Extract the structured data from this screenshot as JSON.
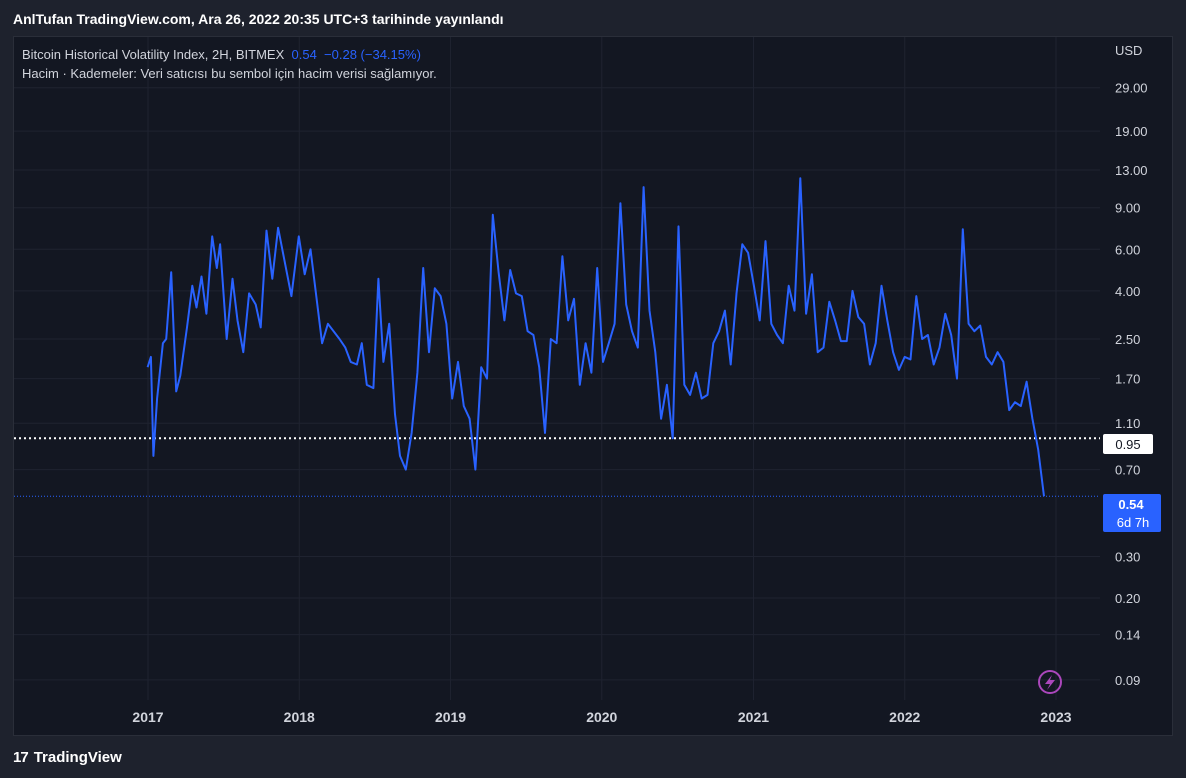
{
  "publish_note": "AnlTufan TradingView.com, Ara 26, 2022 20:35 UTC+3 tarihinde yayınlandı",
  "legend": {
    "symbol": "Bitcoin Historical Volatility Index, 2H, BITMEX",
    "value": "0.54",
    "change": "−0.28 (−34.15%)",
    "volume_note": "Hacim · Kademeler: Veri satıcısı bu sembol için hacim verisi sağlamıyor."
  },
  "price_axis": {
    "currency": "USD",
    "ticks": [
      "29.00",
      "19.00",
      "13.00",
      "9.00",
      "6.00",
      "4.00",
      "2.50",
      "1.70",
      "1.10",
      "0.70",
      "0.30",
      "0.20",
      "0.14",
      "0.09"
    ]
  },
  "markers": {
    "dotted_line_value": "0.95",
    "last_value": "0.54",
    "countdown": "6d 7h"
  },
  "footer": {
    "brand": "TradingView",
    "logo_glyph": "17"
  },
  "colors": {
    "line": "#2962ff",
    "background": "#131722",
    "last_label": "#2962ff"
  },
  "chart_data": {
    "type": "line",
    "scale": "log",
    "title": "Bitcoin Historical Volatility Index, 2H, BITMEX",
    "ylabel": "USD",
    "ylim": [
      0.08,
      38
    ],
    "x_ticks": [
      "2017",
      "2018",
      "2019",
      "2020",
      "2021",
      "2022",
      "2023"
    ],
    "grid": true,
    "series": [
      {
        "values": [
          {
            "x": "2016-12-31",
            "y": 1.9
          },
          {
            "x": "2017-01-08",
            "y": 2.1
          },
          {
            "x": "2017-01-14",
            "y": 0.8
          },
          {
            "x": "2017-01-23",
            "y": 1.4
          },
          {
            "x": "2017-02-06",
            "y": 2.4
          },
          {
            "x": "2017-02-14",
            "y": 2.5
          },
          {
            "x": "2017-02-26",
            "y": 4.8
          },
          {
            "x": "2017-03-10",
            "y": 1.5
          },
          {
            "x": "2017-03-20",
            "y": 1.75
          },
          {
            "x": "2017-04-05",
            "y": 2.8
          },
          {
            "x": "2017-04-18",
            "y": 4.2
          },
          {
            "x": "2017-04-28",
            "y": 3.4
          },
          {
            "x": "2017-05-10",
            "y": 4.6
          },
          {
            "x": "2017-05-22",
            "y": 3.2
          },
          {
            "x": "2017-06-05",
            "y": 6.8
          },
          {
            "x": "2017-06-16",
            "y": 5.0
          },
          {
            "x": "2017-06-24",
            "y": 6.3
          },
          {
            "x": "2017-07-10",
            "y": 2.5
          },
          {
            "x": "2017-07-24",
            "y": 4.5
          },
          {
            "x": "2017-08-05",
            "y": 3.0
          },
          {
            "x": "2017-08-19",
            "y": 2.2
          },
          {
            "x": "2017-09-02",
            "y": 3.9
          },
          {
            "x": "2017-09-18",
            "y": 3.5
          },
          {
            "x": "2017-09-30",
            "y": 2.8
          },
          {
            "x": "2017-10-14",
            "y": 7.2
          },
          {
            "x": "2017-10-28",
            "y": 4.5
          },
          {
            "x": "2017-11-11",
            "y": 7.4
          },
          {
            "x": "2017-12-13",
            "y": 3.8
          },
          {
            "x": "2017-12-31",
            "y": 6.8
          },
          {
            "x": "2018-01-14",
            "y": 4.7
          },
          {
            "x": "2018-01-28",
            "y": 6.0
          },
          {
            "x": "2018-02-25",
            "y": 2.4
          },
          {
            "x": "2018-03-11",
            "y": 2.9
          },
          {
            "x": "2018-04-08",
            "y": 2.5
          },
          {
            "x": "2018-04-22",
            "y": 2.3
          },
          {
            "x": "2018-05-05",
            "y": 2.0
          },
          {
            "x": "2018-05-20",
            "y": 1.95
          },
          {
            "x": "2018-06-01",
            "y": 2.4
          },
          {
            "x": "2018-06-13",
            "y": 1.6
          },
          {
            "x": "2018-06-29",
            "y": 1.55
          },
          {
            "x": "2018-07-11",
            "y": 4.5
          },
          {
            "x": "2018-07-23",
            "y": 2.0
          },
          {
            "x": "2018-08-06",
            "y": 2.9
          },
          {
            "x": "2018-08-20",
            "y": 1.2
          },
          {
            "x": "2018-09-01",
            "y": 0.8
          },
          {
            "x": "2018-09-15",
            "y": 0.7
          },
          {
            "x": "2018-09-29",
            "y": 1.0
          },
          {
            "x": "2018-10-13",
            "y": 1.8
          },
          {
            "x": "2018-10-27",
            "y": 5.0
          },
          {
            "x": "2018-11-10",
            "y": 2.2
          },
          {
            "x": "2018-11-24",
            "y": 4.1
          },
          {
            "x": "2018-12-08",
            "y": 3.8
          },
          {
            "x": "2018-12-22",
            "y": 2.9
          },
          {
            "x": "2019-01-05",
            "y": 1.4
          },
          {
            "x": "2019-01-19",
            "y": 2.0
          },
          {
            "x": "2019-02-02",
            "y": 1.3
          },
          {
            "x": "2019-02-16",
            "y": 1.15
          },
          {
            "x": "2019-03-02",
            "y": 0.7
          },
          {
            "x": "2019-03-16",
            "y": 1.9
          },
          {
            "x": "2019-03-30",
            "y": 1.7
          },
          {
            "x": "2019-04-13",
            "y": 8.4
          },
          {
            "x": "2019-04-27",
            "y": 4.8
          },
          {
            "x": "2019-05-11",
            "y": 3.0
          },
          {
            "x": "2019-05-25",
            "y": 4.9
          },
          {
            "x": "2019-06-08",
            "y": 3.9
          },
          {
            "x": "2019-06-22",
            "y": 3.8
          },
          {
            "x": "2019-07-06",
            "y": 2.7
          },
          {
            "x": "2019-07-20",
            "y": 2.6
          },
          {
            "x": "2019-08-03",
            "y": 1.9
          },
          {
            "x": "2019-08-17",
            "y": 1.0
          },
          {
            "x": "2019-08-31",
            "y": 2.5
          },
          {
            "x": "2019-09-14",
            "y": 2.4
          },
          {
            "x": "2019-09-28",
            "y": 5.6
          },
          {
            "x": "2019-10-12",
            "y": 3.0
          },
          {
            "x": "2019-10-26",
            "y": 3.7
          },
          {
            "x": "2019-11-09",
            "y": 1.6
          },
          {
            "x": "2019-11-23",
            "y": 2.4
          },
          {
            "x": "2019-12-07",
            "y": 1.8
          },
          {
            "x": "2019-12-21",
            "y": 5.0
          },
          {
            "x": "2020-01-04",
            "y": 2.0
          },
          {
            "x": "2020-01-18",
            "y": 2.4
          },
          {
            "x": "2020-02-01",
            "y": 2.9
          },
          {
            "x": "2020-02-15",
            "y": 9.4
          },
          {
            "x": "2020-02-29",
            "y": 3.5
          },
          {
            "x": "2020-03-14",
            "y": 2.7
          },
          {
            "x": "2020-03-28",
            "y": 2.3
          },
          {
            "x": "2020-04-11",
            "y": 11.0
          },
          {
            "x": "2020-04-25",
            "y": 3.3
          },
          {
            "x": "2020-05-09",
            "y": 2.2
          },
          {
            "x": "2020-05-23",
            "y": 1.15
          },
          {
            "x": "2020-06-06",
            "y": 1.6
          },
          {
            "x": "2020-06-20",
            "y": 0.95
          },
          {
            "x": "2020-07-04",
            "y": 7.5
          },
          {
            "x": "2020-07-18",
            "y": 1.6
          },
          {
            "x": "2020-08-01",
            "y": 1.45
          },
          {
            "x": "2020-08-15",
            "y": 1.8
          },
          {
            "x": "2020-08-29",
            "y": 1.4
          },
          {
            "x": "2020-09-12",
            "y": 1.45
          },
          {
            "x": "2020-09-26",
            "y": 2.4
          },
          {
            "x": "2020-10-10",
            "y": 2.7
          },
          {
            "x": "2020-10-24",
            "y": 3.3
          },
          {
            "x": "2020-11-07",
            "y": 1.95
          },
          {
            "x": "2020-11-21",
            "y": 3.9
          },
          {
            "x": "2020-12-05",
            "y": 6.3
          },
          {
            "x": "2020-12-19",
            "y": 5.8
          },
          {
            "x": "2021-01-02",
            "y": 4.2
          },
          {
            "x": "2021-01-16",
            "y": 3.0
          },
          {
            "x": "2021-01-30",
            "y": 6.5
          },
          {
            "x": "2021-02-13",
            "y": 2.9
          },
          {
            "x": "2021-02-27",
            "y": 2.6
          },
          {
            "x": "2021-03-13",
            "y": 2.4
          },
          {
            "x": "2021-03-27",
            "y": 4.2
          },
          {
            "x": "2021-04-10",
            "y": 3.3
          },
          {
            "x": "2021-04-24",
            "y": 12.0
          },
          {
            "x": "2021-05-08",
            "y": 3.2
          },
          {
            "x": "2021-05-22",
            "y": 4.7
          },
          {
            "x": "2021-06-05",
            "y": 2.2
          },
          {
            "x": "2021-06-19",
            "y": 2.3
          },
          {
            "x": "2021-07-03",
            "y": 3.6
          },
          {
            "x": "2021-07-17",
            "y": 3.0
          },
          {
            "x": "2021-07-31",
            "y": 2.45
          },
          {
            "x": "2021-08-14",
            "y": 2.45
          },
          {
            "x": "2021-08-28",
            "y": 4.0
          },
          {
            "x": "2021-09-11",
            "y": 3.1
          },
          {
            "x": "2021-09-25",
            "y": 2.9
          },
          {
            "x": "2021-10-09",
            "y": 1.95
          },
          {
            "x": "2021-10-23",
            "y": 2.4
          },
          {
            "x": "2021-11-06",
            "y": 4.2
          },
          {
            "x": "2021-11-20",
            "y": 3.0
          },
          {
            "x": "2021-12-04",
            "y": 2.2
          },
          {
            "x": "2021-12-18",
            "y": 1.85
          },
          {
            "x": "2022-01-01",
            "y": 2.1
          },
          {
            "x": "2022-01-15",
            "y": 2.05
          },
          {
            "x": "2022-01-29",
            "y": 3.8
          },
          {
            "x": "2022-02-12",
            "y": 2.5
          },
          {
            "x": "2022-02-26",
            "y": 2.6
          },
          {
            "x": "2022-03-12",
            "y": 1.95
          },
          {
            "x": "2022-03-26",
            "y": 2.3
          },
          {
            "x": "2022-04-09",
            "y": 3.2
          },
          {
            "x": "2022-04-23",
            "y": 2.6
          },
          {
            "x": "2022-05-07",
            "y": 1.7
          },
          {
            "x": "2022-05-21",
            "y": 7.3
          },
          {
            "x": "2022-06-04",
            "y": 2.9
          },
          {
            "x": "2022-06-18",
            "y": 2.7
          },
          {
            "x": "2022-07-02",
            "y": 2.85
          },
          {
            "x": "2022-07-16",
            "y": 2.1
          },
          {
            "x": "2022-07-30",
            "y": 1.95
          },
          {
            "x": "2022-08-13",
            "y": 2.2
          },
          {
            "x": "2022-08-27",
            "y": 2.0
          },
          {
            "x": "2022-09-10",
            "y": 1.25
          },
          {
            "x": "2022-09-24",
            "y": 1.35
          },
          {
            "x": "2022-10-08",
            "y": 1.3
          },
          {
            "x": "2022-10-22",
            "y": 1.65
          },
          {
            "x": "2022-11-05",
            "y": 1.15
          },
          {
            "x": "2022-11-19",
            "y": 0.85
          },
          {
            "x": "2022-12-03",
            "y": 0.54
          }
        ]
      }
    ]
  }
}
